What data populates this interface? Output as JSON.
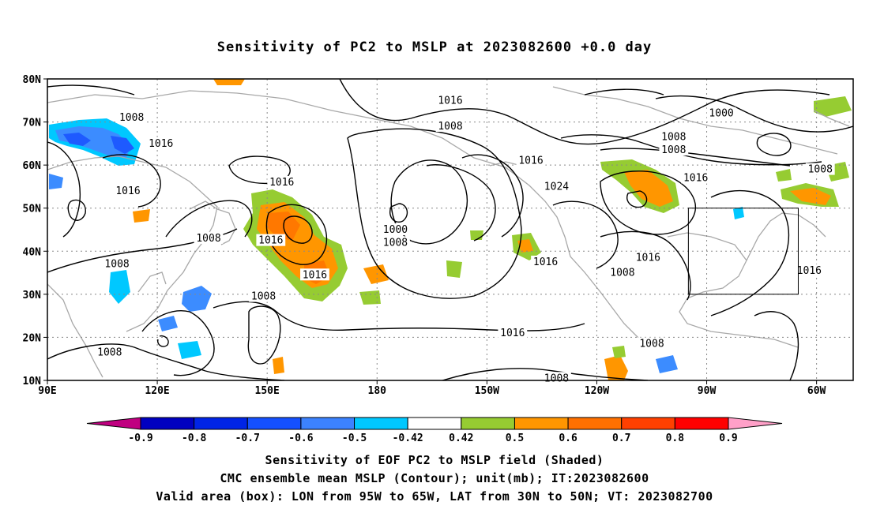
{
  "title": "Sensitivity of PC2 to MSLP at 2023082600 +0.0 day",
  "map": {
    "lon_range": [
      90,
      310
    ],
    "lat_range": [
      10,
      80
    ],
    "lat_ticks": [
      {
        "lat": 80,
        "label": "80N"
      },
      {
        "lat": 70,
        "label": "70N"
      },
      {
        "lat": 60,
        "label": "60N"
      },
      {
        "lat": 50,
        "label": "50N"
      },
      {
        "lat": 40,
        "label": "40N"
      },
      {
        "lat": 30,
        "label": "30N"
      },
      {
        "lat": 20,
        "label": "20N"
      },
      {
        "lat": 10,
        "label": "10N"
      }
    ],
    "lon_ticks": [
      {
        "lon": 90,
        "label": "90E"
      },
      {
        "lon": 120,
        "label": "120E"
      },
      {
        "lon": 150,
        "label": "150E"
      },
      {
        "lon": 180,
        "label": "180"
      },
      {
        "lon": 210,
        "label": "150W"
      },
      {
        "lon": 240,
        "label": "120W"
      },
      {
        "lon": 270,
        "label": "90W"
      },
      {
        "lon": 300,
        "label": "60W"
      }
    ],
    "valid_box": {
      "lon_min": 265,
      "lon_max": 295,
      "lat_min": 30,
      "lat_max": 50
    },
    "contour_labels": [
      {
        "text": "1016",
        "lon": 200,
        "lat": 75
      },
      {
        "text": "1008",
        "lon": 113,
        "lat": 71
      },
      {
        "text": "1016",
        "lon": 121,
        "lat": 65
      },
      {
        "text": "1008",
        "lon": 200,
        "lat": 69
      },
      {
        "text": "1000",
        "lon": 274,
        "lat": 72
      },
      {
        "text": "1008",
        "lon": 261,
        "lat": 66.5
      },
      {
        "text": "1008",
        "lon": 261,
        "lat": 63.5
      },
      {
        "text": "1016",
        "lon": 222,
        "lat": 61
      },
      {
        "text": "1008",
        "lon": 301,
        "lat": 59
      },
      {
        "text": "1016",
        "lon": 267,
        "lat": 57
      },
      {
        "text": "1024",
        "lon": 229,
        "lat": 55
      },
      {
        "text": "1016",
        "lon": 112,
        "lat": 54
      },
      {
        "text": "1016",
        "lon": 154,
        "lat": 56
      },
      {
        "text": "1008",
        "lon": 134,
        "lat": 43
      },
      {
        "text": "1016",
        "lon": 151,
        "lat": 42.5
      },
      {
        "text": "1000",
        "lon": 185,
        "lat": 45
      },
      {
        "text": "1008",
        "lon": 185,
        "lat": 42
      },
      {
        "text": "1008",
        "lon": 109,
        "lat": 37
      },
      {
        "text": "1016",
        "lon": 226,
        "lat": 37.5
      },
      {
        "text": "1016",
        "lon": 254,
        "lat": 38.5
      },
      {
        "text": "1016",
        "lon": 163,
        "lat": 34.5
      },
      {
        "text": "1008",
        "lon": 247,
        "lat": 35
      },
      {
        "text": "1016",
        "lon": 298,
        "lat": 35.5
      },
      {
        "text": "1008",
        "lon": 149,
        "lat": 29.5
      },
      {
        "text": "1016",
        "lon": 217,
        "lat": 21
      },
      {
        "text": "1008",
        "lon": 255,
        "lat": 18.5
      },
      {
        "text": "1008",
        "lon": 107,
        "lat": 16.5
      },
      {
        "text": "1008",
        "lon": 229,
        "lat": 10.5
      }
    ],
    "shading_colors": {
      "neg_09": "#c00080",
      "neg_08": "#0000c8",
      "neg_07": "#0020e6",
      "neg_06": "#1e5aff",
      "neg_05": "#3c8cff",
      "neg_042": "#00c8ff",
      "pos_042": "#96cc32",
      "pos_05": "#ff9600",
      "pos_06": "#ff7800",
      "pos_07": "#ff4b00",
      "pos_08": "#ff0000",
      "pos_09": "#ffa0c8"
    }
  },
  "colorbar": {
    "labels": [
      "-0.9",
      "-0.8",
      "-0.7",
      "-0.6",
      "-0.5",
      "-0.42",
      "0.42",
      "0.5",
      "0.6",
      "0.7",
      "0.8",
      "0.9"
    ],
    "colors": [
      "#0000c0",
      "#0024e6",
      "#1450ff",
      "#3c82ff",
      "#00c8ff",
      "#ffffff",
      "#96cc32",
      "#ff9600",
      "#ff7000",
      "#ff4000",
      "#ff0000"
    ],
    "left_tip_color": "#c00080",
    "right_tip_color": "#ffa0c8"
  },
  "captions": {
    "line1": "Sensitivity of EOF PC2 to MSLP field (Shaded)",
    "line2": "CMC ensemble mean MSLP (Contour); unit(mb); IT:2023082600",
    "line3": "Valid area (box): LON from 95W to 65W, LAT from 30N to 50N; VT: 2023082700"
  }
}
